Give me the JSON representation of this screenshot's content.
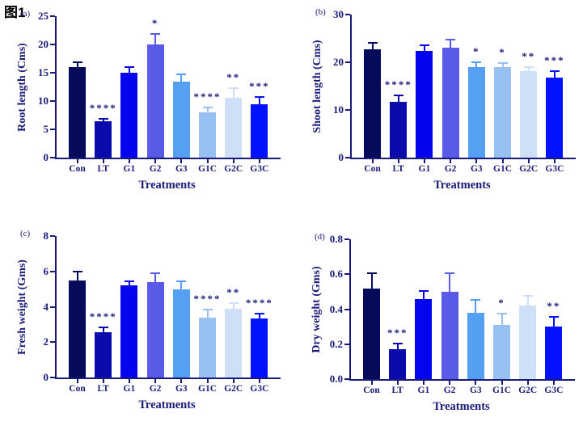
{
  "figure_title": "图1",
  "style": {
    "background": "#ffffff",
    "axis_color": "#1a1a78",
    "text_color": "#1a1a78",
    "title_color": "#000000",
    "bar_colors": [
      "#060a5a",
      "#0b0bad",
      "#0404ee",
      "#5a5ae8",
      "#55a0f2",
      "#97c1f2",
      "#cfdff7",
      "#0211fe"
    ]
  },
  "chart_data": [
    {
      "type": "bar",
      "panel_label": "(a)",
      "ylabel": "Root length (Cms)",
      "xlabel": "Treatments",
      "ylim": [
        0,
        25
      ],
      "ytick_values": [
        0,
        5,
        10,
        15,
        20,
        25
      ],
      "ytick_labels": [
        "0",
        "5",
        "10",
        "15",
        "20",
        "25"
      ],
      "categories": [
        "Con",
        "LT",
        "G1",
        "G2",
        "G3",
        "G1C",
        "G2C",
        "G3C"
      ],
      "values": [
        16.0,
        6.5,
        15.0,
        20.0,
        13.4,
        8.0,
        10.6,
        9.4
      ],
      "errors": [
        1.0,
        0.5,
        1.1,
        2.0,
        1.5,
        1.0,
        1.8,
        1.4
      ],
      "significance": [
        "",
        "****",
        "",
        "*",
        "",
        "****",
        "**",
        "***"
      ]
    },
    {
      "type": "bar",
      "panel_label": "(b)",
      "ylabel": "Shoot length (Cms)",
      "xlabel": "Treatments",
      "ylim": [
        0,
        30
      ],
      "ytick_values": [
        0,
        10,
        20,
        30
      ],
      "ytick_labels": [
        "0",
        "10",
        "20",
        "30"
      ],
      "categories": [
        "Con",
        "LT",
        "G1",
        "G2",
        "G3",
        "G1C",
        "G2C",
        "G3C"
      ],
      "values": [
        22.7,
        11.7,
        22.3,
        23.0,
        19.0,
        19.0,
        18.2,
        16.7
      ],
      "errors": [
        1.5,
        1.6,
        1.5,
        2.0,
        1.1,
        1.0,
        0.9,
        1.6
      ],
      "significance": [
        "",
        "****",
        "",
        "",
        "*",
        "*",
        "**",
        "***"
      ]
    },
    {
      "type": "bar",
      "panel_label": "(c)",
      "ylabel": "Fresh weight (Gms)",
      "xlabel": "Treatments",
      "ylim": [
        0,
        8
      ],
      "ytick_values": [
        0,
        2,
        4,
        6,
        8
      ],
      "ytick_labels": [
        "0",
        "2",
        "4",
        "6",
        "8"
      ],
      "categories": [
        "Con",
        "LT",
        "G1",
        "G2",
        "G3",
        "G1C",
        "G2C",
        "G3C"
      ],
      "values": [
        5.5,
        2.55,
        5.2,
        5.4,
        5.0,
        3.4,
        3.9,
        3.35
      ],
      "errors": [
        0.55,
        0.35,
        0.27,
        0.53,
        0.5,
        0.5,
        0.37,
        0.3
      ],
      "significance": [
        "",
        "****",
        "",
        "",
        "",
        "****",
        "**",
        "****"
      ]
    },
    {
      "type": "bar",
      "panel_label": "(d)",
      "ylabel": "Dry weight (Gms)",
      "xlabel": "Treatments",
      "ylim": [
        0,
        0.8
      ],
      "ytick_values": [
        0,
        0.2,
        0.4,
        0.6,
        0.8
      ],
      "ytick_labels": [
        "0.0",
        "0.2",
        "0.4",
        "0.6",
        "0.8"
      ],
      "categories": [
        "Con",
        "LT",
        "G1",
        "G2",
        "G3",
        "G1C",
        "G2C",
        "G3C"
      ],
      "values": [
        0.52,
        0.17,
        0.46,
        0.5,
        0.38,
        0.31,
        0.42,
        0.3
      ],
      "errors": [
        0.09,
        0.04,
        0.05,
        0.11,
        0.08,
        0.07,
        0.06,
        0.06
      ],
      "significance": [
        "",
        "***",
        "",
        "",
        "",
        "*",
        "",
        "**"
      ]
    }
  ]
}
